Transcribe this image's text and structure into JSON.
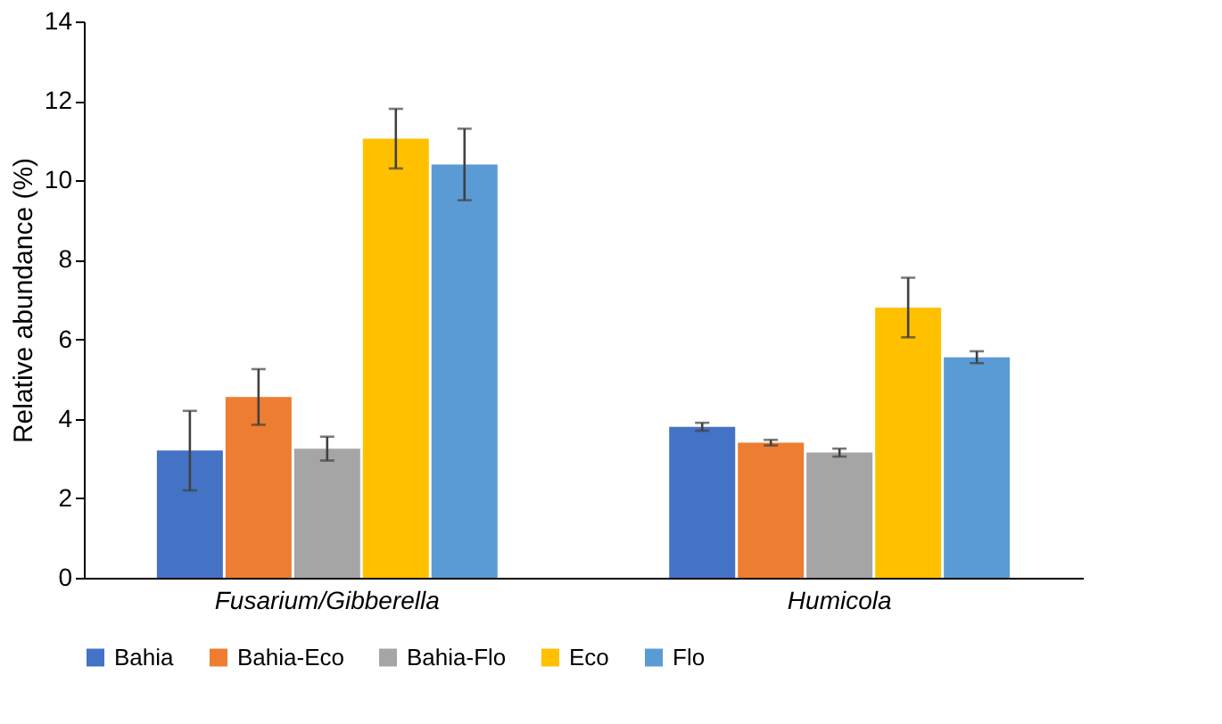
{
  "chart_data": {
    "type": "bar",
    "ylabel": "Relative abundance (%)",
    "categories": [
      "Fusarium/Gibberella",
      "Humicola"
    ],
    "series": [
      {
        "name": "Bahia",
        "color": "#4472c4",
        "values": [
          3.2,
          3.8
        ],
        "errors": [
          1.0,
          0.1
        ]
      },
      {
        "name": "Bahia-Eco",
        "color": "#ed7d31",
        "values": [
          4.55,
          3.4
        ],
        "errors": [
          0.7,
          0.07
        ]
      },
      {
        "name": "Bahia-Flo",
        "color": "#a5a5a5",
        "values": [
          3.25,
          3.15
        ],
        "errors": [
          0.3,
          0.1
        ]
      },
      {
        "name": "Eco",
        "color": "#ffc000",
        "values": [
          11.05,
          6.8
        ],
        "errors": [
          0.75,
          0.75
        ]
      },
      {
        "name": "Flo",
        "color": "#5b9bd5",
        "values": [
          10.4,
          5.55
        ],
        "errors": [
          0.9,
          0.15
        ]
      }
    ],
    "ylim": [
      0,
      14
    ],
    "yticks": [
      0,
      2,
      4,
      6,
      8,
      10,
      12,
      14
    ],
    "grid": false,
    "legend": "bottom"
  }
}
